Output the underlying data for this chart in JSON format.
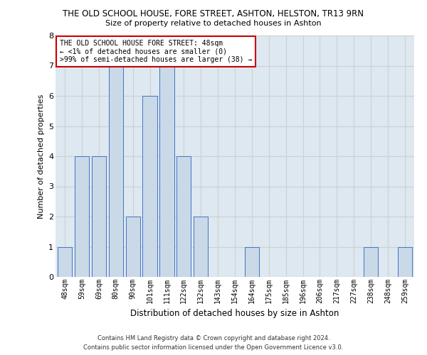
{
  "title": "THE OLD SCHOOL HOUSE, FORE STREET, ASHTON, HELSTON, TR13 9RN",
  "subtitle": "Size of property relative to detached houses in Ashton",
  "xlabel": "Distribution of detached houses by size in Ashton",
  "ylabel": "Number of detached properties",
  "categories": [
    "48sqm",
    "59sqm",
    "69sqm",
    "80sqm",
    "90sqm",
    "101sqm",
    "111sqm",
    "122sqm",
    "132sqm",
    "143sqm",
    "154sqm",
    "164sqm",
    "175sqm",
    "185sqm",
    "196sqm",
    "206sqm",
    "217sqm",
    "227sqm",
    "238sqm",
    "248sqm",
    "259sqm"
  ],
  "values": [
    1,
    4,
    4,
    7,
    2,
    6,
    7,
    4,
    2,
    0,
    0,
    1,
    0,
    0,
    0,
    0,
    0,
    0,
    1,
    0,
    1
  ],
  "bar_color_normal": "#c9d9e8",
  "bar_edge_color": "#4472c4",
  "ylim": [
    0,
    8
  ],
  "yticks": [
    0,
    1,
    2,
    3,
    4,
    5,
    6,
    7,
    8
  ],
  "grid_color": "#d0d0d0",
  "background_color": "#dde8f0",
  "annotation_text": "THE OLD SCHOOL HOUSE FORE STREET: 48sqm\n← <1% of detached houses are smaller (0)\n>99% of semi-detached houses are larger (38) →",
  "annotation_box_color": "#ffffff",
  "annotation_box_edgecolor": "#cc0000",
  "footer_line1": "Contains HM Land Registry data © Crown copyright and database right 2024.",
  "footer_line2": "Contains public sector information licensed under the Open Government Licence v3.0."
}
